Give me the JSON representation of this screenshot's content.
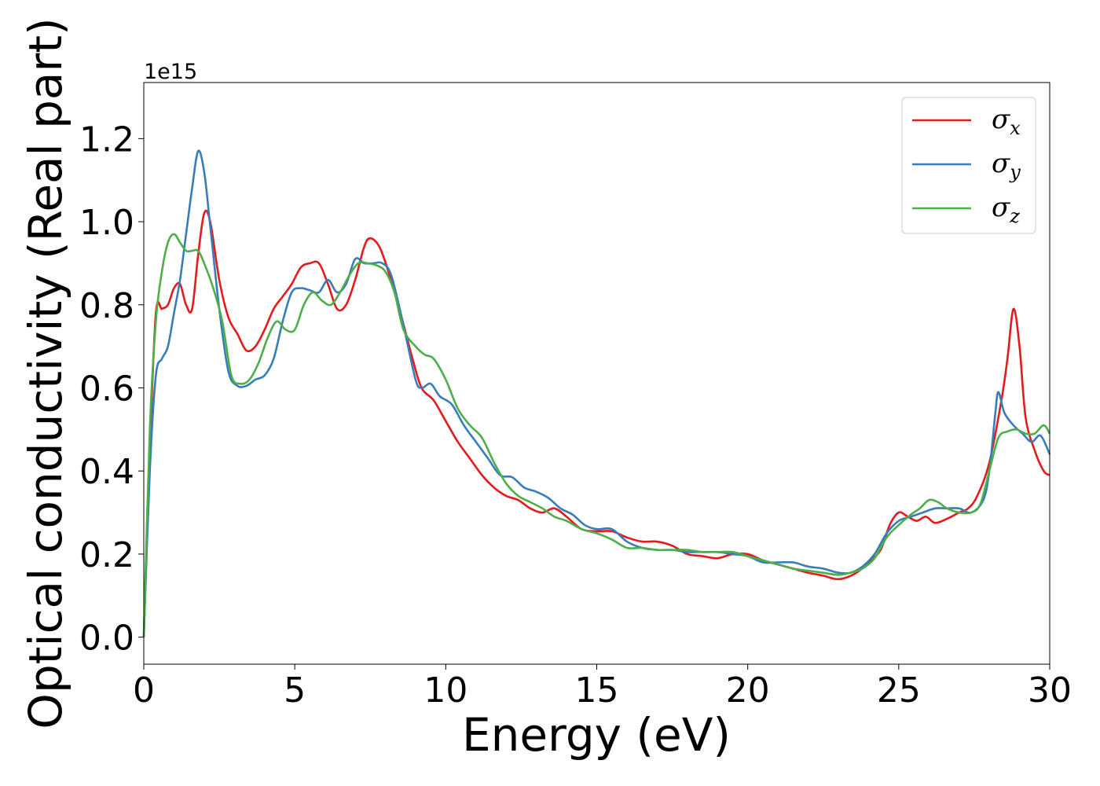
{
  "chart_data": {
    "type": "line",
    "xlabel": "Energy (eV)",
    "ylabel": "Optical conductivity (Real part)",
    "y_multiplier_label": "1e15",
    "xlim": [
      0,
      30
    ],
    "ylim": [
      -0.065,
      1.335
    ],
    "x_ticks": [
      0,
      5,
      10,
      15,
      20,
      25,
      30
    ],
    "x_tick_labels": [
      "0",
      "5",
      "10",
      "15",
      "20",
      "25",
      "30"
    ],
    "y_ticks": [
      0.0,
      0.2,
      0.4,
      0.6,
      0.8,
      1.0,
      1.2
    ],
    "y_tick_labels": [
      "0.0",
      "0.2",
      "0.4",
      "0.6",
      "0.8",
      "1.0",
      "1.2"
    ],
    "grid": false,
    "legend_position": "top-right",
    "series": [
      {
        "name": "σx",
        "legend_main": "σ",
        "legend_sub": "x",
        "color": "#e41a1c",
        "points": [
          [
            0,
            0.0
          ],
          [
            0.2,
            0.45
          ],
          [
            0.4,
            0.78
          ],
          [
            0.6,
            0.79
          ],
          [
            0.8,
            0.8
          ],
          [
            1.0,
            0.84
          ],
          [
            1.2,
            0.85
          ],
          [
            1.4,
            0.8
          ],
          [
            1.6,
            0.79
          ],
          [
            1.8,
            0.92
          ],
          [
            2.0,
            1.02
          ],
          [
            2.2,
            1.0
          ],
          [
            2.5,
            0.86
          ],
          [
            2.8,
            0.77
          ],
          [
            3.1,
            0.73
          ],
          [
            3.4,
            0.69
          ],
          [
            3.7,
            0.7
          ],
          [
            4.0,
            0.74
          ],
          [
            4.3,
            0.79
          ],
          [
            4.6,
            0.82
          ],
          [
            4.9,
            0.85
          ],
          [
            5.2,
            0.89
          ],
          [
            5.5,
            0.9
          ],
          [
            5.8,
            0.9
          ],
          [
            6.1,
            0.85
          ],
          [
            6.4,
            0.79
          ],
          [
            6.7,
            0.8
          ],
          [
            7.0,
            0.86
          ],
          [
            7.3,
            0.94
          ],
          [
            7.5,
            0.96
          ],
          [
            7.8,
            0.94
          ],
          [
            8.1,
            0.88
          ],
          [
            8.5,
            0.78
          ],
          [
            8.9,
            0.67
          ],
          [
            9.2,
            0.6
          ],
          [
            9.6,
            0.57
          ],
          [
            10.0,
            0.52
          ],
          [
            10.4,
            0.47
          ],
          [
            10.8,
            0.43
          ],
          [
            11.2,
            0.39
          ],
          [
            11.6,
            0.36
          ],
          [
            12.0,
            0.34
          ],
          [
            12.4,
            0.33
          ],
          [
            12.8,
            0.31
          ],
          [
            13.2,
            0.3
          ],
          [
            13.6,
            0.31
          ],
          [
            14.0,
            0.29
          ],
          [
            14.5,
            0.26
          ],
          [
            15.0,
            0.255
          ],
          [
            15.5,
            0.255
          ],
          [
            16.0,
            0.24
          ],
          [
            16.5,
            0.23
          ],
          [
            17.0,
            0.23
          ],
          [
            17.5,
            0.22
          ],
          [
            18.0,
            0.2
          ],
          [
            18.5,
            0.195
          ],
          [
            19.0,
            0.19
          ],
          [
            19.5,
            0.2
          ],
          [
            20.0,
            0.2
          ],
          [
            20.5,
            0.185
          ],
          [
            21.0,
            0.175
          ],
          [
            21.5,
            0.165
          ],
          [
            22.0,
            0.155
          ],
          [
            22.5,
            0.148
          ],
          [
            22.9,
            0.14
          ],
          [
            23.2,
            0.142
          ],
          [
            23.6,
            0.155
          ],
          [
            24.0,
            0.18
          ],
          [
            24.4,
            0.21
          ],
          [
            24.7,
            0.27
          ],
          [
            25.0,
            0.3
          ],
          [
            25.3,
            0.29
          ],
          [
            25.6,
            0.28
          ],
          [
            25.9,
            0.29
          ],
          [
            26.2,
            0.275
          ],
          [
            26.6,
            0.285
          ],
          [
            27.0,
            0.3
          ],
          [
            27.3,
            0.31
          ],
          [
            27.6,
            0.34
          ],
          [
            28.0,
            0.42
          ],
          [
            28.4,
            0.57
          ],
          [
            28.6,
            0.67
          ],
          [
            28.8,
            0.79
          ],
          [
            29.0,
            0.7
          ],
          [
            29.2,
            0.53
          ],
          [
            29.5,
            0.45
          ],
          [
            29.8,
            0.4
          ],
          [
            30.0,
            0.39
          ]
        ]
      },
      {
        "name": "σy",
        "legend_main": "σ",
        "legend_sub": "y",
        "color": "#377eb8",
        "points": [
          [
            0,
            0.0
          ],
          [
            0.2,
            0.4
          ],
          [
            0.4,
            0.63
          ],
          [
            0.6,
            0.67
          ],
          [
            0.8,
            0.7
          ],
          [
            1.0,
            0.78
          ],
          [
            1.2,
            0.86
          ],
          [
            1.4,
            0.97
          ],
          [
            1.6,
            1.08
          ],
          [
            1.8,
            1.17
          ],
          [
            2.0,
            1.12
          ],
          [
            2.2,
            0.99
          ],
          [
            2.5,
            0.79
          ],
          [
            2.8,
            0.64
          ],
          [
            3.1,
            0.605
          ],
          [
            3.4,
            0.605
          ],
          [
            3.7,
            0.62
          ],
          [
            4.0,
            0.63
          ],
          [
            4.3,
            0.67
          ],
          [
            4.6,
            0.76
          ],
          [
            4.9,
            0.83
          ],
          [
            5.2,
            0.84
          ],
          [
            5.5,
            0.835
          ],
          [
            5.8,
            0.83
          ],
          [
            6.1,
            0.86
          ],
          [
            6.4,
            0.83
          ],
          [
            6.7,
            0.85
          ],
          [
            7.0,
            0.91
          ],
          [
            7.3,
            0.9
          ],
          [
            7.6,
            0.9
          ],
          [
            7.9,
            0.9
          ],
          [
            8.2,
            0.87
          ],
          [
            8.6,
            0.75
          ],
          [
            9.0,
            0.62
          ],
          [
            9.2,
            0.6
          ],
          [
            9.5,
            0.61
          ],
          [
            9.8,
            0.58
          ],
          [
            10.2,
            0.56
          ],
          [
            10.6,
            0.51
          ],
          [
            11.0,
            0.47
          ],
          [
            11.4,
            0.43
          ],
          [
            11.8,
            0.39
          ],
          [
            12.2,
            0.385
          ],
          [
            12.6,
            0.36
          ],
          [
            13.0,
            0.35
          ],
          [
            13.4,
            0.335
          ],
          [
            13.8,
            0.31
          ],
          [
            14.2,
            0.295
          ],
          [
            14.6,
            0.27
          ],
          [
            15.0,
            0.26
          ],
          [
            15.5,
            0.26
          ],
          [
            16.0,
            0.23
          ],
          [
            16.5,
            0.215
          ],
          [
            17.0,
            0.21
          ],
          [
            17.5,
            0.21
          ],
          [
            18.0,
            0.205
          ],
          [
            18.5,
            0.205
          ],
          [
            19.0,
            0.205
          ],
          [
            19.5,
            0.2
          ],
          [
            20.0,
            0.195
          ],
          [
            20.5,
            0.18
          ],
          [
            21.0,
            0.18
          ],
          [
            21.5,
            0.18
          ],
          [
            22.0,
            0.17
          ],
          [
            22.5,
            0.165
          ],
          [
            23.0,
            0.155
          ],
          [
            23.4,
            0.155
          ],
          [
            23.8,
            0.17
          ],
          [
            24.2,
            0.2
          ],
          [
            24.6,
            0.25
          ],
          [
            25.0,
            0.28
          ],
          [
            25.4,
            0.29
          ],
          [
            25.8,
            0.3
          ],
          [
            26.2,
            0.31
          ],
          [
            26.6,
            0.31
          ],
          [
            27.0,
            0.31
          ],
          [
            27.4,
            0.3
          ],
          [
            27.8,
            0.33
          ],
          [
            28.0,
            0.4
          ],
          [
            28.2,
            0.54
          ],
          [
            28.3,
            0.59
          ],
          [
            28.5,
            0.54
          ],
          [
            28.8,
            0.51
          ],
          [
            29.1,
            0.49
          ],
          [
            29.4,
            0.47
          ],
          [
            29.7,
            0.485
          ],
          [
            30.0,
            0.44
          ]
        ]
      },
      {
        "name": "σz",
        "legend_main": "σ",
        "legend_sub": "z",
        "color": "#4daf4a",
        "points": [
          [
            0,
            0.0
          ],
          [
            0.2,
            0.5
          ],
          [
            0.4,
            0.76
          ],
          [
            0.6,
            0.88
          ],
          [
            0.8,
            0.95
          ],
          [
            1.0,
            0.97
          ],
          [
            1.2,
            0.95
          ],
          [
            1.4,
            0.93
          ],
          [
            1.6,
            0.93
          ],
          [
            1.8,
            0.93
          ],
          [
            2.0,
            0.9
          ],
          [
            2.3,
            0.84
          ],
          [
            2.6,
            0.76
          ],
          [
            2.9,
            0.63
          ],
          [
            3.2,
            0.61
          ],
          [
            3.5,
            0.62
          ],
          [
            3.8,
            0.66
          ],
          [
            4.1,
            0.72
          ],
          [
            4.4,
            0.76
          ],
          [
            4.7,
            0.74
          ],
          [
            5.0,
            0.74
          ],
          [
            5.3,
            0.8
          ],
          [
            5.6,
            0.83
          ],
          [
            5.9,
            0.81
          ],
          [
            6.2,
            0.8
          ],
          [
            6.5,
            0.83
          ],
          [
            6.8,
            0.87
          ],
          [
            7.1,
            0.9
          ],
          [
            7.4,
            0.9
          ],
          [
            7.7,
            0.895
          ],
          [
            8.0,
            0.88
          ],
          [
            8.3,
            0.83
          ],
          [
            8.6,
            0.74
          ],
          [
            9.0,
            0.7
          ],
          [
            9.3,
            0.68
          ],
          [
            9.6,
            0.67
          ],
          [
            10.0,
            0.62
          ],
          [
            10.4,
            0.55
          ],
          [
            10.8,
            0.51
          ],
          [
            11.2,
            0.48
          ],
          [
            11.6,
            0.42
          ],
          [
            12.0,
            0.37
          ],
          [
            12.4,
            0.34
          ],
          [
            12.8,
            0.325
          ],
          [
            13.2,
            0.31
          ],
          [
            13.6,
            0.29
          ],
          [
            14.0,
            0.28
          ],
          [
            14.5,
            0.26
          ],
          [
            15.0,
            0.25
          ],
          [
            15.5,
            0.235
          ],
          [
            16.0,
            0.215
          ],
          [
            16.5,
            0.215
          ],
          [
            17.0,
            0.21
          ],
          [
            17.5,
            0.21
          ],
          [
            18.0,
            0.21
          ],
          [
            18.5,
            0.205
          ],
          [
            19.0,
            0.205
          ],
          [
            19.5,
            0.205
          ],
          [
            20.0,
            0.195
          ],
          [
            20.5,
            0.185
          ],
          [
            21.0,
            0.175
          ],
          [
            21.5,
            0.165
          ],
          [
            22.0,
            0.16
          ],
          [
            22.5,
            0.155
          ],
          [
            23.0,
            0.15
          ],
          [
            23.4,
            0.155
          ],
          [
            23.8,
            0.165
          ],
          [
            24.2,
            0.19
          ],
          [
            24.6,
            0.24
          ],
          [
            25.0,
            0.27
          ],
          [
            25.4,
            0.295
          ],
          [
            25.7,
            0.31
          ],
          [
            26.0,
            0.33
          ],
          [
            26.3,
            0.325
          ],
          [
            26.6,
            0.31
          ],
          [
            27.0,
            0.3
          ],
          [
            27.4,
            0.3
          ],
          [
            27.7,
            0.32
          ],
          [
            28.0,
            0.4
          ],
          [
            28.3,
            0.48
          ],
          [
            28.6,
            0.495
          ],
          [
            28.9,
            0.5
          ],
          [
            29.2,
            0.49
          ],
          [
            29.5,
            0.49
          ],
          [
            29.8,
            0.51
          ],
          [
            30.0,
            0.49
          ]
        ]
      }
    ]
  }
}
